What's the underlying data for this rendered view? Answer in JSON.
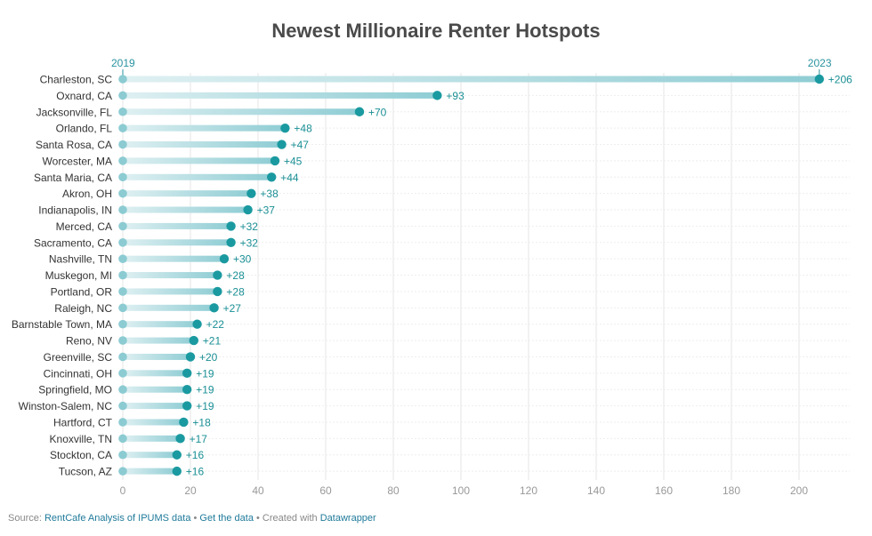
{
  "chart_data": {
    "type": "dumbbell",
    "title": "Newest Millionaire Renter Hotspots",
    "start_label": "2019",
    "end_label": "2023",
    "xlim": [
      0,
      210
    ],
    "x_ticks": [
      0,
      20,
      40,
      60,
      80,
      100,
      120,
      140,
      160,
      180,
      200
    ],
    "grid": true,
    "colors": {
      "start_dot": "#8ccbd2",
      "end_dot": "#1a9aa0",
      "bar_light": "#cfe9ec",
      "bar_dark": "#8fcdd4",
      "label": "#1a8f95"
    },
    "rows": [
      {
        "city": "Charleston, SC",
        "start": 0,
        "end": 206,
        "label": "+206"
      },
      {
        "city": "Oxnard, CA",
        "start": 0,
        "end": 93,
        "label": "+93"
      },
      {
        "city": "Jacksonville, FL",
        "start": 0,
        "end": 70,
        "label": "+70"
      },
      {
        "city": "Orlando, FL",
        "start": 0,
        "end": 48,
        "label": "+48"
      },
      {
        "city": "Santa Rosa, CA",
        "start": 0,
        "end": 47,
        "label": "+47"
      },
      {
        "city": "Worcester, MA",
        "start": 0,
        "end": 45,
        "label": "+45"
      },
      {
        "city": "Santa Maria, CA",
        "start": 0,
        "end": 44,
        "label": "+44"
      },
      {
        "city": "Akron, OH",
        "start": 0,
        "end": 38,
        "label": "+38"
      },
      {
        "city": "Indianapolis, IN",
        "start": 0,
        "end": 37,
        "label": "+37"
      },
      {
        "city": "Merced, CA",
        "start": 0,
        "end": 32,
        "label": "+32"
      },
      {
        "city": "Sacramento, CA",
        "start": 0,
        "end": 32,
        "label": "+32"
      },
      {
        "city": "Nashville, TN",
        "start": 0,
        "end": 30,
        "label": "+30"
      },
      {
        "city": "Muskegon, MI",
        "start": 0,
        "end": 28,
        "label": "+28"
      },
      {
        "city": "Portland, OR",
        "start": 0,
        "end": 28,
        "label": "+28"
      },
      {
        "city": "Raleigh, NC",
        "start": 0,
        "end": 27,
        "label": "+27"
      },
      {
        "city": "Barnstable Town, MA",
        "start": 0,
        "end": 22,
        "label": "+22"
      },
      {
        "city": "Reno, NV",
        "start": 0,
        "end": 21,
        "label": "+21"
      },
      {
        "city": "Greenville, SC",
        "start": 0,
        "end": 20,
        "label": "+20"
      },
      {
        "city": "Cincinnati, OH",
        "start": 0,
        "end": 19,
        "label": "+19"
      },
      {
        "city": "Springfield, MO",
        "start": 0,
        "end": 19,
        "label": "+19"
      },
      {
        "city": "Winston-Salem, NC",
        "start": 0,
        "end": 19,
        "label": "+19"
      },
      {
        "city": "Hartford, CT",
        "start": 0,
        "end": 18,
        "label": "+18"
      },
      {
        "city": "Knoxville, TN",
        "start": 0,
        "end": 17,
        "label": "+17"
      },
      {
        "city": "Stockton, CA",
        "start": 0,
        "end": 16,
        "label": "+16"
      },
      {
        "city": "Tucson, AZ",
        "start": 0,
        "end": 16,
        "label": "+16"
      }
    ]
  },
  "footer": {
    "source_prefix": "Source: ",
    "source_link": "RentCafe Analysis of IPUMS data",
    "sep1": " • ",
    "get_data": "Get the data",
    "sep2": " • Created with ",
    "tool": "Datawrapper"
  }
}
